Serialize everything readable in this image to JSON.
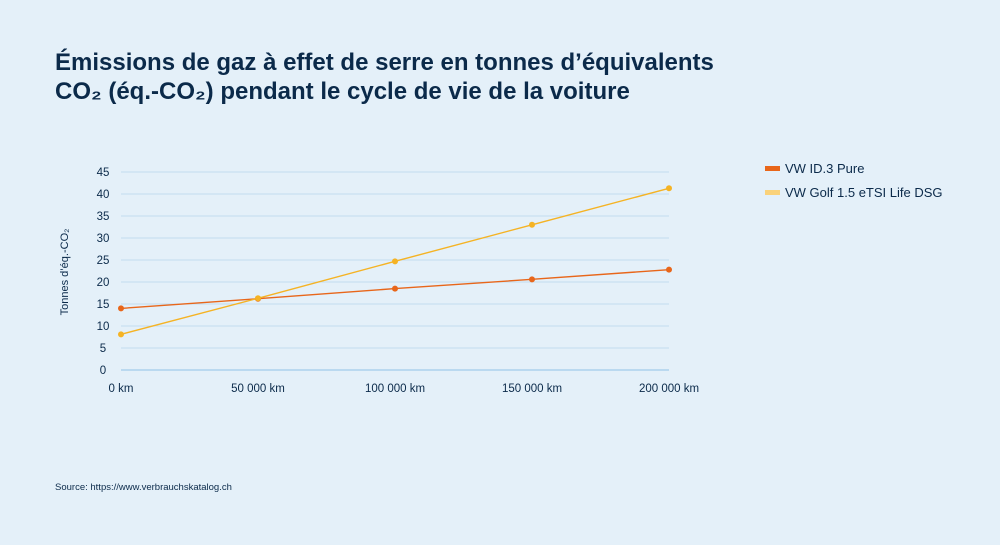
{
  "title_line1": "Émissions de gaz à effet de serre en tonnes d’équivalents",
  "title_line2": "CO₂ (éq.-CO₂) pendant le cycle de vie de la voiture",
  "source": "Source: https://www.verbrauchskatalog.ch",
  "chart_data": {
    "type": "line",
    "title": "Émissions de gaz à effet de serre en tonnes d’équivalents CO₂ (éq.-CO₂) pendant le cycle de vie de la voiture",
    "xlabel": "",
    "ylabel": "Tonnes d’éq.-CO₂",
    "categories": [
      "0 km",
      "50 000 km",
      "100 000 km",
      "150 000 km",
      "200 000 km"
    ],
    "ylim": [
      0,
      45
    ],
    "yticks": [
      0,
      5,
      10,
      15,
      20,
      25,
      30,
      35,
      40,
      45
    ],
    "grid": true,
    "legend_position": "top-right",
    "series": [
      {
        "name": "VW ID.3 Pure",
        "color": "#e8661a",
        "values": [
          14,
          16.2,
          18.5,
          20.6,
          22.8
        ]
      },
      {
        "name": "VW Golf 1.5 eTSI Life DSG",
        "color": "#f5b324",
        "legend_color": "#fad27a",
        "values": [
          8.1,
          16.3,
          24.7,
          33,
          41.3
        ]
      }
    ]
  }
}
